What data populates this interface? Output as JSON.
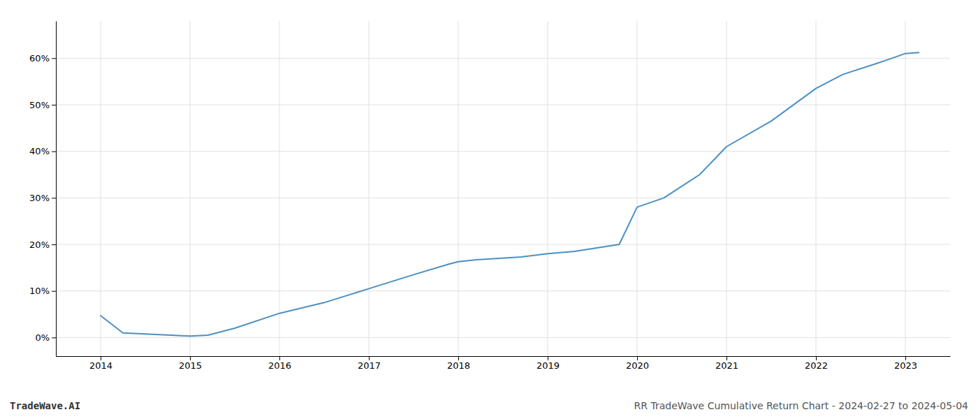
{
  "chart_data": {
    "type": "line",
    "x": [
      2014,
      2014.25,
      2015,
      2015.2,
      2015.5,
      2016,
      2016.5,
      2017,
      2017.5,
      2017.9,
      2018,
      2018.2,
      2018.7,
      2019,
      2019.3,
      2019.8,
      2020,
      2020.3,
      2020.7,
      2021,
      2021.5,
      2022,
      2022.3,
      2022.7,
      2023,
      2023.15
    ],
    "values": [
      4.7,
      1.0,
      0.3,
      0.5,
      2.0,
      5.2,
      7.5,
      10.5,
      13.5,
      15.8,
      16.3,
      16.7,
      17.3,
      18.0,
      18.5,
      20.0,
      28.0,
      30.0,
      35.0,
      41.0,
      46.5,
      53.5,
      56.5,
      59.0,
      61.0,
      61.2
    ],
    "color": "#4a90c4",
    "xlim": [
      2013.5,
      2023.5
    ],
    "ylim": [
      -4,
      68
    ],
    "xticks": [
      2014,
      2015,
      2016,
      2017,
      2018,
      2019,
      2020,
      2021,
      2022,
      2023
    ],
    "yticks": [
      {
        "value": 0,
        "label": "0%"
      },
      {
        "value": 10,
        "label": "10%"
      },
      {
        "value": 20,
        "label": "20%"
      },
      {
        "value": 30,
        "label": "30%"
      },
      {
        "value": 40,
        "label": "40%"
      },
      {
        "value": 50,
        "label": "50%"
      },
      {
        "value": 60,
        "label": "60%"
      }
    ],
    "grid": true,
    "annotations": [
      "TradeWave.AI",
      "RR TradeWave Cumulative Return Chart - 2024-02-27 to 2024-05-04"
    ]
  }
}
